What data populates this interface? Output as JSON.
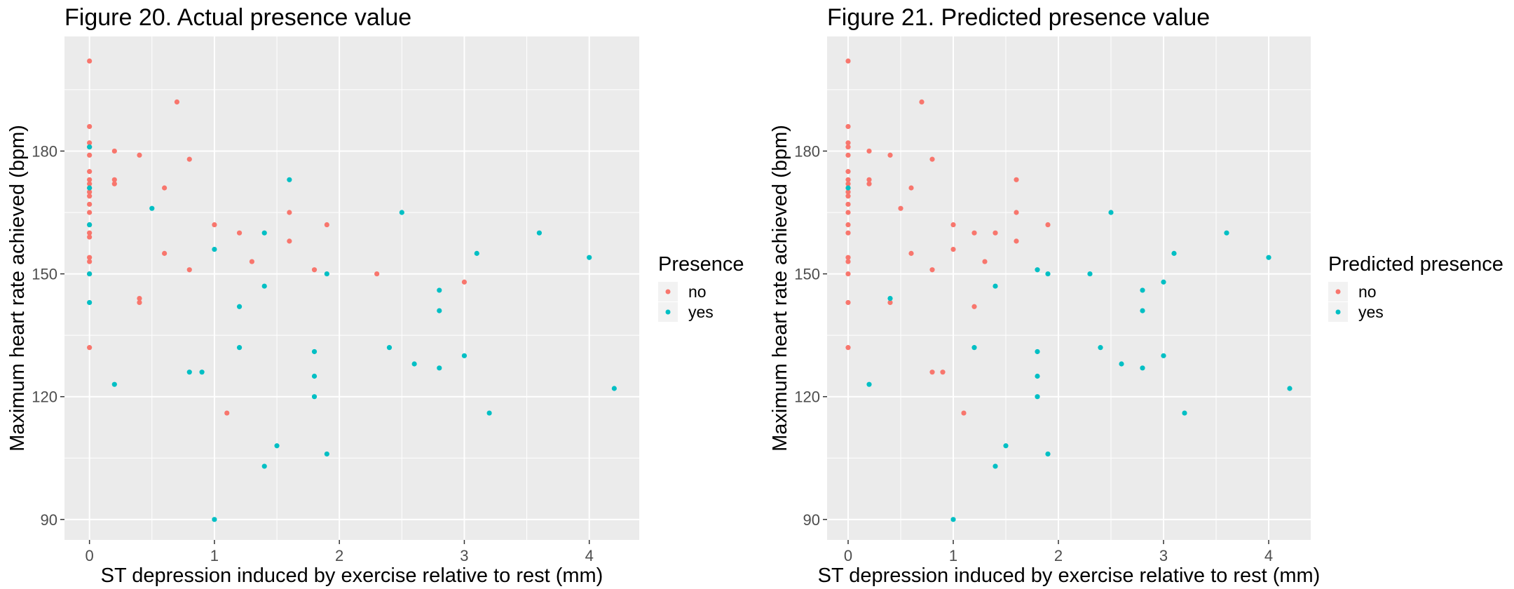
{
  "colors": {
    "no": "#F8766D",
    "yes": "#00BFC4",
    "panel": "#EBEBEB",
    "grid": "#FFFFFF"
  },
  "chart_data": [
    {
      "type": "scatter",
      "title": "Figure 20. Actual presence value",
      "xlabel": "ST depression induced by exercise relative to rest (mm)",
      "ylabel": "Maximum heart rate achieved (bpm)",
      "xlim": [
        -0.2,
        4.4
      ],
      "ylim": [
        85,
        208
      ],
      "x_ticks": [
        0,
        1,
        2,
        3,
        4
      ],
      "y_ticks": [
        90,
        120,
        150,
        180
      ],
      "grid": true,
      "legend": {
        "title": "Presence",
        "position": "right",
        "entries": [
          "no",
          "yes"
        ]
      },
      "series": [
        {
          "name": "no",
          "points": [
            [
              0,
              202
            ],
            [
              0,
              186
            ],
            [
              0,
              182
            ],
            [
              0,
              181
            ],
            [
              0,
              179
            ],
            [
              0,
              175
            ],
            [
              0,
              173
            ],
            [
              0,
              172
            ],
            [
              0,
              171
            ],
            [
              0,
              170
            ],
            [
              0,
              169
            ],
            [
              0,
              167
            ],
            [
              0,
              165
            ],
            [
              0,
              162
            ],
            [
              0,
              160
            ],
            [
              0,
              159
            ],
            [
              0,
              154
            ],
            [
              0,
              153
            ],
            [
              0,
              150
            ],
            [
              0,
              132
            ],
            [
              0.2,
              180
            ],
            [
              0.2,
              173
            ],
            [
              0.2,
              172
            ],
            [
              0.4,
              179
            ],
            [
              0.4,
              144
            ],
            [
              0.4,
              143
            ],
            [
              0.6,
              171
            ],
            [
              0.6,
              155
            ],
            [
              0.7,
              192
            ],
            [
              0.8,
              178
            ],
            [
              0.8,
              151
            ],
            [
              1.0,
              162
            ],
            [
              1.1,
              116
            ],
            [
              1.2,
              160
            ],
            [
              1.3,
              153
            ],
            [
              1.6,
              165
            ],
            [
              1.6,
              158
            ],
            [
              1.8,
              151
            ],
            [
              1.9,
              162
            ],
            [
              2.3,
              150
            ],
            [
              3.0,
              148
            ]
          ]
        },
        {
          "name": "yes",
          "points": [
            [
              0,
              181
            ],
            [
              0,
              171
            ],
            [
              0,
              162
            ],
            [
              0,
              150
            ],
            [
              0,
              143
            ],
            [
              0.2,
              123
            ],
            [
              0.5,
              166
            ],
            [
              0.8,
              126
            ],
            [
              0.9,
              126
            ],
            [
              1.0,
              156
            ],
            [
              1.0,
              90
            ],
            [
              1.2,
              142
            ],
            [
              1.2,
              132
            ],
            [
              1.4,
              160
            ],
            [
              1.4,
              147
            ],
            [
              1.4,
              103
            ],
            [
              1.5,
              108
            ],
            [
              1.6,
              173
            ],
            [
              1.8,
              131
            ],
            [
              1.8,
              125
            ],
            [
              1.8,
              120
            ],
            [
              1.9,
              150
            ],
            [
              1.9,
              106
            ],
            [
              2.4,
              132
            ],
            [
              2.5,
              165
            ],
            [
              2.6,
              128
            ],
            [
              2.8,
              146
            ],
            [
              2.8,
              141
            ],
            [
              2.8,
              127
            ],
            [
              3.0,
              130
            ],
            [
              3.1,
              155
            ],
            [
              3.2,
              116
            ],
            [
              3.6,
              160
            ],
            [
              4.0,
              154
            ],
            [
              4.2,
              122
            ]
          ]
        }
      ]
    },
    {
      "type": "scatter",
      "title": "Figure 21. Predicted presence value",
      "xlabel": "ST depression induced by exercise relative to rest (mm)",
      "ylabel": "Maximum heart rate achieved (bpm)",
      "xlim": [
        -0.2,
        4.4
      ],
      "ylim": [
        85,
        208
      ],
      "x_ticks": [
        0,
        1,
        2,
        3,
        4
      ],
      "y_ticks": [
        90,
        120,
        150,
        180
      ],
      "grid": true,
      "legend": {
        "title": "Predicted presence",
        "position": "right",
        "entries": [
          "no",
          "yes"
        ]
      },
      "series": [
        {
          "name": "no",
          "points": [
            [
              0,
              202
            ],
            [
              0,
              186
            ],
            [
              0,
              182
            ],
            [
              0,
              181
            ],
            [
              0,
              179
            ],
            [
              0,
              175
            ],
            [
              0,
              173
            ],
            [
              0,
              172
            ],
            [
              0,
              171
            ],
            [
              0,
              170
            ],
            [
              0,
              169
            ],
            [
              0,
              167
            ],
            [
              0,
              165
            ],
            [
              0,
              162
            ],
            [
              0,
              160
            ],
            [
              0,
              154
            ],
            [
              0,
              153
            ],
            [
              0,
              150
            ],
            [
              0,
              143
            ],
            [
              0,
              132
            ],
            [
              0.2,
              180
            ],
            [
              0.2,
              173
            ],
            [
              0.2,
              172
            ],
            [
              0.4,
              179
            ],
            [
              0.4,
              143
            ],
            [
              0.5,
              166
            ],
            [
              0.6,
              171
            ],
            [
              0.6,
              155
            ],
            [
              0.7,
              192
            ],
            [
              0.8,
              178
            ],
            [
              0.8,
              151
            ],
            [
              0.8,
              126
            ],
            [
              0.9,
              126
            ],
            [
              1.0,
              162
            ],
            [
              1.0,
              156
            ],
            [
              1.1,
              116
            ],
            [
              1.2,
              160
            ],
            [
              1.2,
              142
            ],
            [
              1.3,
              153
            ],
            [
              1.4,
              160
            ],
            [
              1.6,
              173
            ],
            [
              1.6,
              165
            ],
            [
              1.6,
              158
            ],
            [
              1.9,
              162
            ]
          ]
        },
        {
          "name": "yes",
          "points": [
            [
              0,
              171
            ],
            [
              0.2,
              123
            ],
            [
              0.4,
              144
            ],
            [
              1.0,
              90
            ],
            [
              1.2,
              132
            ],
            [
              1.4,
              147
            ],
            [
              1.4,
              103
            ],
            [
              1.5,
              108
            ],
            [
              1.8,
              151
            ],
            [
              1.8,
              131
            ],
            [
              1.8,
              125
            ],
            [
              1.8,
              120
            ],
            [
              1.9,
              150
            ],
            [
              1.9,
              106
            ],
            [
              2.3,
              150
            ],
            [
              2.4,
              132
            ],
            [
              2.5,
              165
            ],
            [
              2.6,
              128
            ],
            [
              2.8,
              146
            ],
            [
              2.8,
              141
            ],
            [
              2.8,
              127
            ],
            [
              3.0,
              148
            ],
            [
              3.0,
              130
            ],
            [
              3.1,
              155
            ],
            [
              3.2,
              116
            ],
            [
              3.6,
              160
            ],
            [
              4.0,
              154
            ],
            [
              4.2,
              122
            ]
          ]
        }
      ]
    }
  ]
}
